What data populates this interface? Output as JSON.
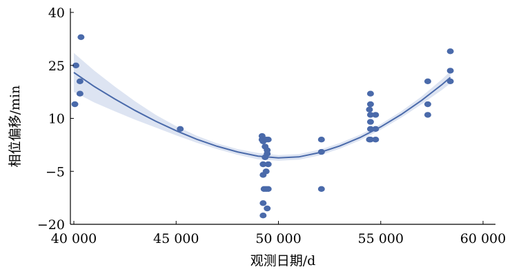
{
  "chart_data": {
    "type": "scatter",
    "title": "",
    "xlabel": "观测日期/d",
    "ylabel": "相位偏移/min",
    "xlim": [
      40000,
      60000
    ],
    "ylim": [
      -20,
      40
    ],
    "x_ticks": [
      40000,
      45000,
      50000,
      55000,
      60000
    ],
    "x_tick_labels": [
      "40 000",
      "45 000",
      "50 000",
      "55 000",
      "60 000"
    ],
    "y_ticks": [
      -20,
      -5,
      10,
      25,
      40
    ],
    "y_tick_labels": [
      "−20",
      "−5",
      "10",
      "25",
      "40"
    ],
    "grid": false,
    "colors": {
      "points": "#4a6aaa",
      "fit_line": "#4a6aaa",
      "confidence_band": "#dde4f2"
    },
    "series": [
      {
        "type": "scatter",
        "points": [
          [
            40050,
            14
          ],
          [
            40100,
            25
          ],
          [
            40350,
            33
          ],
          [
            40300,
            17
          ],
          [
            40300,
            20.5
          ],
          [
            45200,
            7
          ],
          [
            49200,
            5
          ],
          [
            49250,
            3.5
          ],
          [
            49200,
            4
          ],
          [
            49350,
            2
          ],
          [
            49400,
            4
          ],
          [
            49500,
            4
          ],
          [
            49450,
            1
          ],
          [
            49350,
            -1
          ],
          [
            49450,
            0
          ],
          [
            49250,
            -3
          ],
          [
            49500,
            -3
          ],
          [
            49250,
            -6
          ],
          [
            49400,
            -5
          ],
          [
            49300,
            -10
          ],
          [
            49400,
            -10
          ],
          [
            49500,
            -10
          ],
          [
            49250,
            -14
          ],
          [
            49450,
            -15.5
          ],
          [
            49250,
            -17.5
          ],
          [
            52100,
            4
          ],
          [
            52100,
            0.5
          ],
          [
            52100,
            -10
          ],
          [
            54500,
            17
          ],
          [
            54500,
            14
          ],
          [
            54450,
            12.5
          ],
          [
            54500,
            11
          ],
          [
            54750,
            11
          ],
          [
            54500,
            9
          ],
          [
            54500,
            7
          ],
          [
            54750,
            7
          ],
          [
            54450,
            4
          ],
          [
            54500,
            4
          ],
          [
            54750,
            4
          ],
          [
            57300,
            20.5
          ],
          [
            57300,
            14
          ],
          [
            57300,
            11
          ],
          [
            58400,
            29
          ],
          [
            58400,
            23.5
          ],
          [
            58400,
            20.5
          ]
        ]
      },
      {
        "type": "line",
        "description_of_fit": "quadratic",
        "x": [
          40000,
          41000,
          42000,
          43000,
          44000,
          45000,
          46000,
          47000,
          48000,
          49000,
          50000,
          51000,
          52000,
          53000,
          54000,
          55000,
          56000,
          57000,
          58000,
          58400
        ],
        "y": [
          23,
          19,
          15.5,
          12.2,
          9.2,
          6.5,
          4.1,
          2.1,
          0.5,
          -0.7,
          -1.2,
          -0.9,
          0.3,
          2.2,
          4.6,
          7.6,
          11.1,
          15.1,
          19.6,
          21.6
        ]
      },
      {
        "type": "area",
        "x": [
          40000,
          41000,
          42000,
          43000,
          44000,
          45000,
          46000,
          47000,
          48000,
          49000,
          50000,
          51000,
          52000,
          53000,
          54000,
          55000,
          56000,
          57000,
          58000,
          58400
        ],
        "y_upper": [
          28.5,
          23.5,
          19,
          14.8,
          11,
          7.8,
          5.1,
          2.9,
          1.3,
          0.2,
          -0.4,
          -0.1,
          1.1,
          3.0,
          5.4,
          8.4,
          12.0,
          16.2,
          21.1,
          23.3
        ],
        "y_lower": [
          17.5,
          14.5,
          12.0,
          9.6,
          7.4,
          5.2,
          3.1,
          1.3,
          -0.3,
          -1.6,
          -2.0,
          -1.7,
          -0.5,
          1.4,
          3.8,
          6.8,
          10.2,
          14.0,
          18.1,
          19.9
        ]
      }
    ]
  }
}
